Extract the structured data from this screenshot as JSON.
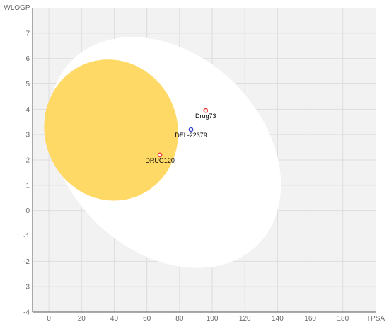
{
  "chart_data": {
    "type": "scatter",
    "xlabel": "TPSA",
    "ylabel": "WLOGP",
    "xlim": [
      -10,
      200
    ],
    "ylim": [
      -4,
      8
    ],
    "x_ticks": [
      0,
      20,
      40,
      60,
      80,
      100,
      120,
      140,
      160,
      180
    ],
    "y_ticks": [
      -4,
      -3,
      -2,
      -1,
      0,
      1,
      2,
      3,
      4,
      5,
      6,
      7
    ],
    "grid": true,
    "regions": [
      {
        "shape": "ellipse",
        "cx": 71.05,
        "cy": 2.292,
        "rx": 142.081,
        "ry": 8.74,
        "rotation_deg": -1.031,
        "color": "#ffffff"
      },
      {
        "shape": "ellipse",
        "cx": 38.117,
        "cy": 3.177,
        "rx": 82.061,
        "ry": 5.557,
        "rotation_deg": -0.171,
        "color": "#ffd966"
      }
    ],
    "points": [
      {
        "label": "Drug73",
        "x": 96,
        "y": 3.95,
        "color": "#e8403a"
      },
      {
        "label": "DEL-22379",
        "x": 87,
        "y": 3.2,
        "color": "#2f3fd6"
      },
      {
        "label": "DRUG120",
        "x": 68,
        "y": 2.2,
        "color": "#e8403a"
      }
    ],
    "plot_background": "#f2f2f2"
  }
}
